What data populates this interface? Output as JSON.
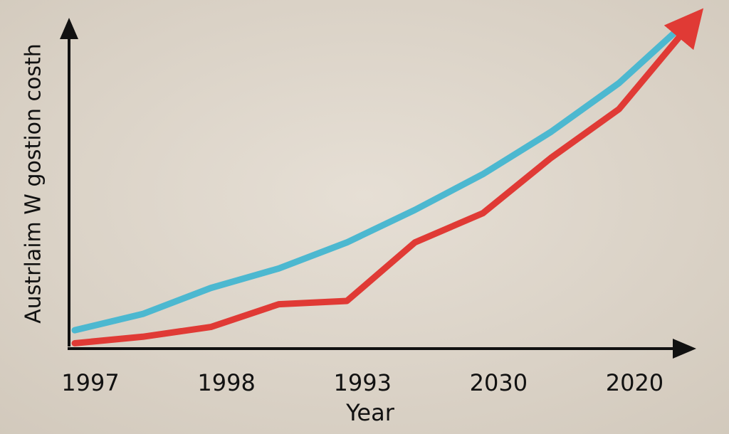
{
  "chart_data": {
    "type": "line",
    "y_label": "Austrlaim W gostion costh",
    "x_label": "Year",
    "categories": [
      "1997",
      null,
      "1998",
      null,
      "1993",
      null,
      "2030",
      null,
      "2020",
      null
    ],
    "series": [
      {
        "color": "#4cb8d0",
        "values": [
          5,
          10,
          18,
          24,
          32,
          42,
          53,
          66,
          81,
          100
        ]
      },
      {
        "color": "#e03a35",
        "values": [
          1,
          3,
          6,
          13,
          14,
          32,
          41,
          58,
          73,
          98
        ]
      }
    ],
    "ylim": [
      0,
      100
    ]
  }
}
